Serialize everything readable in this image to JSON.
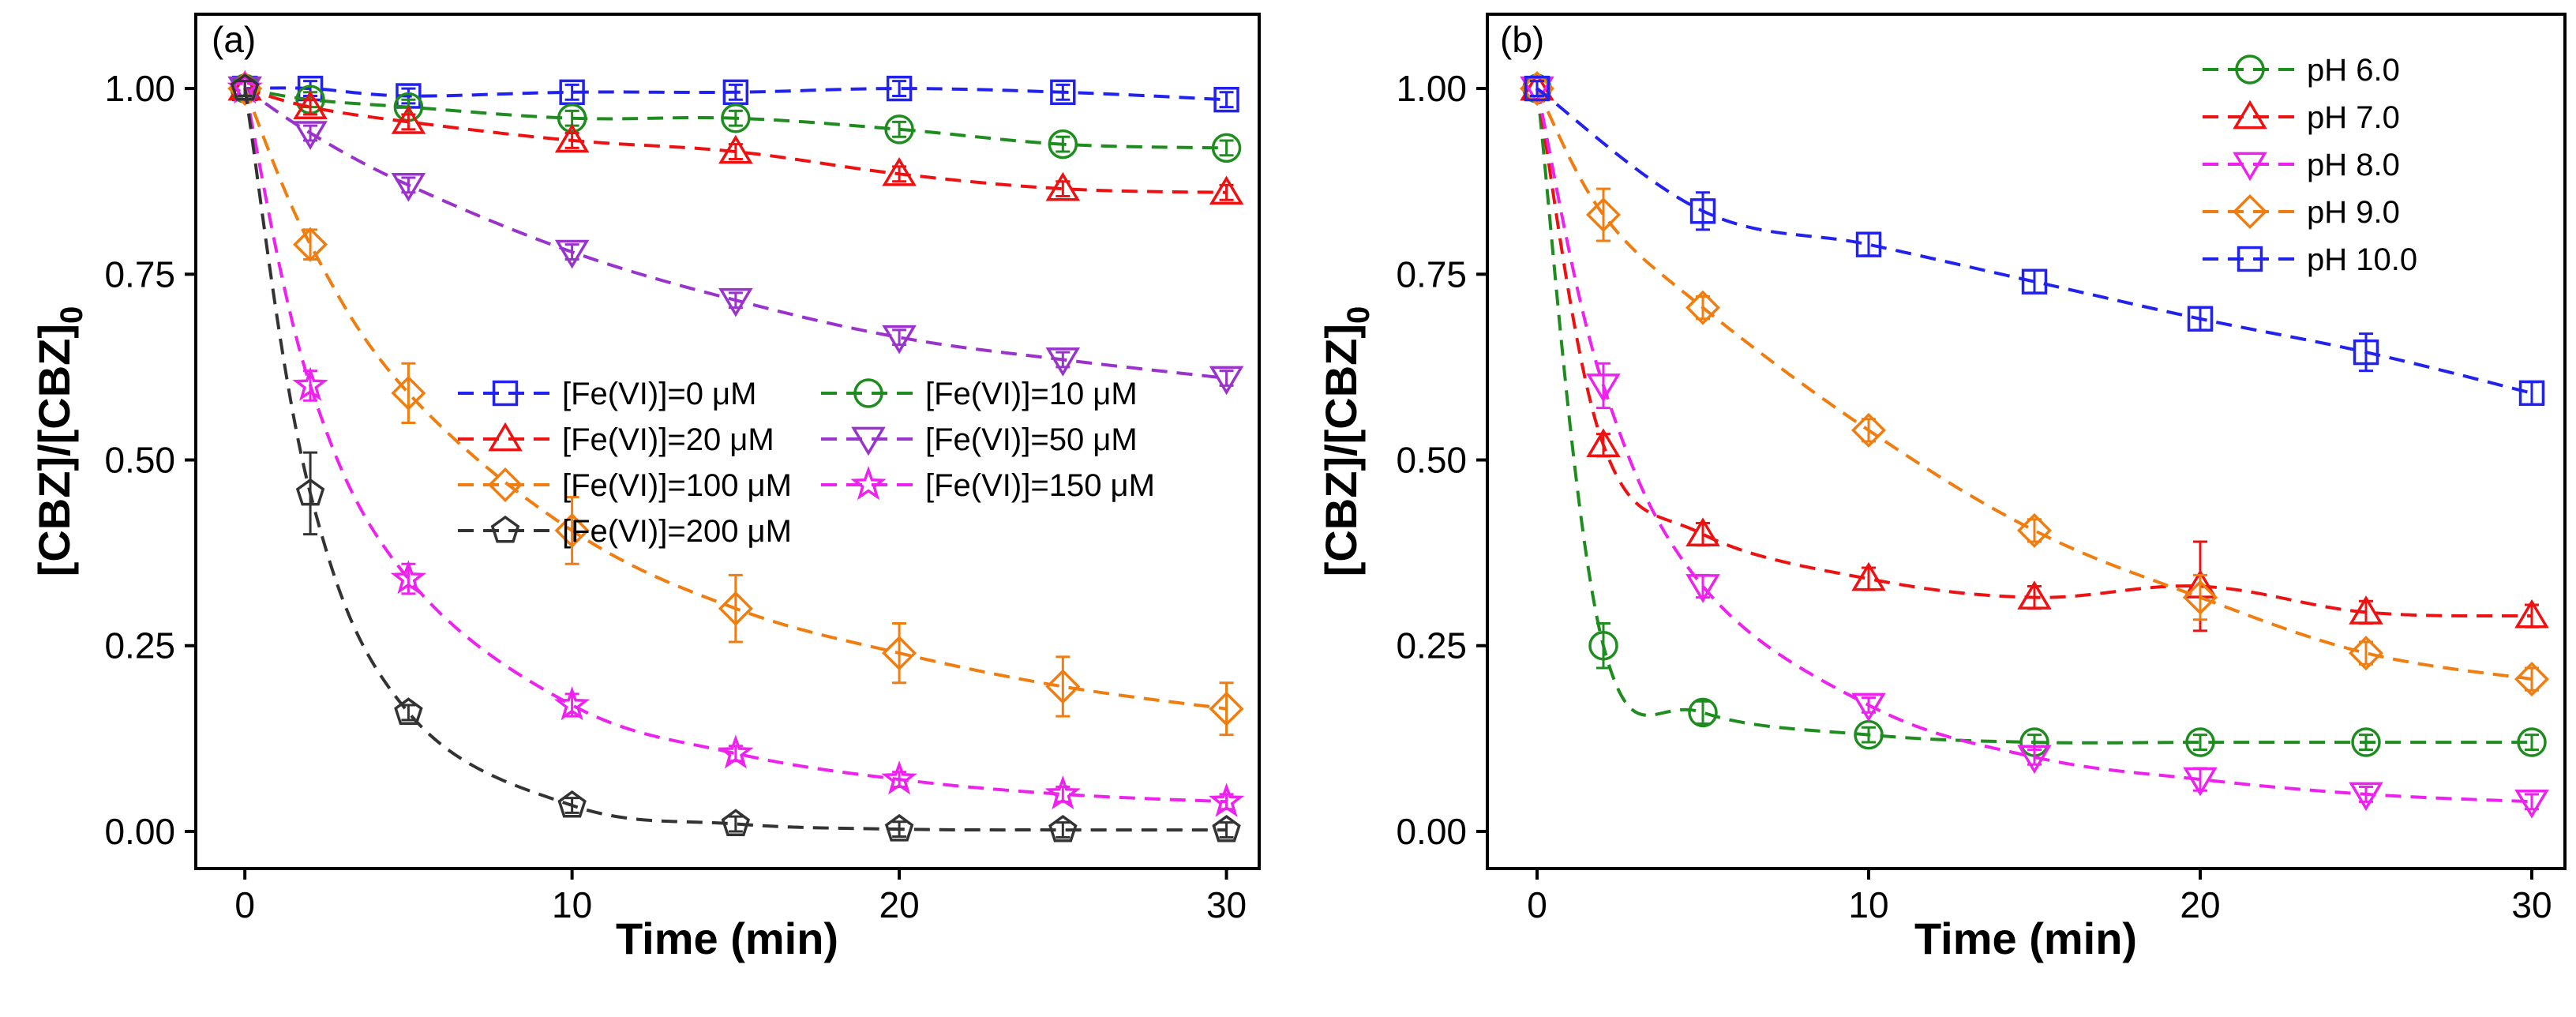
{
  "chart_data": [
    {
      "type": "line",
      "panel_label": "(a)",
      "xlabel": "Time (min)",
      "ylabel": "[CBZ]/[CBZ]",
      "ylabel_sub": "0",
      "xlim": [
        -1.5,
        31
      ],
      "ylim": [
        -0.05,
        1.1
      ],
      "xticks": [
        0,
        10,
        20,
        30
      ],
      "xtick_labels": [
        "0",
        "10",
        "20",
        "30"
      ],
      "yticks": [
        0.0,
        0.25,
        0.5,
        0.75,
        1.0
      ],
      "ytick_labels": [
        "0.00",
        "0.25",
        "0.50",
        "0.75",
        "1.00"
      ],
      "legend_position": "center-right, two columns",
      "series": [
        {
          "name": "[Fe(VI)]=0 μM",
          "marker": "square",
          "color": "#2222EE",
          "x": [
            0,
            2,
            5,
            10,
            15,
            20,
            25,
            30
          ],
          "y": [
            1.0,
            1.0,
            0.99,
            0.995,
            0.995,
            1.0,
            0.995,
            0.985
          ],
          "err": [
            0.01,
            0.01,
            0.01,
            0.01,
            0.01,
            0.01,
            0.01,
            0.01
          ]
        },
        {
          "name": "[Fe(VI)]=10 μM",
          "marker": "circle",
          "color": "#1E8C1E",
          "x": [
            0,
            2,
            5,
            10,
            15,
            20,
            25,
            30
          ],
          "y": [
            1.0,
            0.985,
            0.975,
            0.96,
            0.96,
            0.945,
            0.925,
            0.92
          ],
          "err": [
            0.01,
            0.01,
            0.01,
            0.01,
            0.01,
            0.01,
            0.01,
            0.01
          ]
        },
        {
          "name": "[Fe(VI)]=20 μM",
          "marker": "triangle-up",
          "color": "#EE1111",
          "x": [
            0,
            2,
            5,
            10,
            15,
            20,
            25,
            30
          ],
          "y": [
            1.0,
            0.975,
            0.955,
            0.93,
            0.915,
            0.885,
            0.865,
            0.86
          ],
          "err": [
            0.01,
            0.01,
            0.01,
            0.01,
            0.01,
            0.01,
            0.01,
            0.01
          ]
        },
        {
          "name": "[Fe(VI)]=50 μM",
          "marker": "triangle-down",
          "color": "#9933CC",
          "x": [
            0,
            2,
            5,
            10,
            15,
            20,
            25,
            30
          ],
          "y": [
            1.0,
            0.94,
            0.87,
            0.78,
            0.715,
            0.665,
            0.635,
            0.61
          ],
          "err": [
            0.01,
            0.01,
            0.01,
            0.01,
            0.01,
            0.01,
            0.01,
            0.01
          ]
        },
        {
          "name": "[Fe(VI)]=100 μM",
          "marker": "diamond",
          "color": "#F07D10",
          "x": [
            0,
            2,
            5,
            10,
            15,
            20,
            25,
            30
          ],
          "y": [
            1.0,
            0.79,
            0.59,
            0.405,
            0.3,
            0.24,
            0.195,
            0.165
          ],
          "err": [
            0.01,
            0.02,
            0.04,
            0.045,
            0.045,
            0.04,
            0.04,
            0.035
          ]
        },
        {
          "name": "[Fe(VI)]=150 μM",
          "marker": "star",
          "color": "#EE22EE",
          "x": [
            0,
            2,
            5,
            10,
            15,
            20,
            25,
            30
          ],
          "y": [
            1.0,
            0.6,
            0.34,
            0.17,
            0.105,
            0.07,
            0.05,
            0.04
          ],
          "err": [
            0.01,
            0.02,
            0.02,
            0.015,
            0.01,
            0.01,
            0.01,
            0.01
          ]
        },
        {
          "name": "[Fe(VI)]=200 μM",
          "marker": "pentagon",
          "color": "#333333",
          "x": [
            0,
            2,
            5,
            10,
            15,
            20,
            25,
            30
          ],
          "y": [
            1.0,
            0.455,
            0.16,
            0.035,
            0.01,
            0.003,
            0.002,
            0.002
          ],
          "err": [
            0.01,
            0.055,
            0.01,
            0.01,
            0.01,
            0.01,
            0.01,
            0.01
          ]
        }
      ]
    },
    {
      "type": "line",
      "panel_label": "(b)",
      "xlabel": "Time (min)",
      "ylabel": "[CBZ]/[CBZ]",
      "ylabel_sub": "0",
      "xlim": [
        -1.5,
        31
      ],
      "ylim": [
        -0.05,
        1.1
      ],
      "xticks": [
        0,
        10,
        20,
        30
      ],
      "xtick_labels": [
        "0",
        "10",
        "20",
        "30"
      ],
      "yticks": [
        0.0,
        0.25,
        0.5,
        0.75,
        1.0
      ],
      "ytick_labels": [
        "0.00",
        "0.25",
        "0.50",
        "0.75",
        "1.00"
      ],
      "legend_position": "top-right, one column",
      "series": [
        {
          "name": "pH 6.0",
          "marker": "circle",
          "color": "#1E8C1E",
          "x": [
            0,
            2,
            5,
            10,
            15,
            20,
            25,
            30
          ],
          "y": [
            1.0,
            0.25,
            0.16,
            0.13,
            0.12,
            0.12,
            0.12,
            0.12
          ],
          "err": [
            0.01,
            0.03,
            0.015,
            0.01,
            0.01,
            0.01,
            0.01,
            0.01
          ]
        },
        {
          "name": "pH 7.0",
          "marker": "triangle-up",
          "color": "#EE1111",
          "x": [
            0,
            2,
            5,
            10,
            15,
            20,
            25,
            30
          ],
          "y": [
            1.0,
            0.52,
            0.4,
            0.34,
            0.315,
            0.33,
            0.295,
            0.29
          ],
          "err": [
            0.01,
            0.015,
            0.015,
            0.015,
            0.015,
            0.06,
            0.015,
            0.015
          ]
        },
        {
          "name": "pH 8.0",
          "marker": "triangle-down",
          "color": "#EE22EE",
          "x": [
            0,
            2,
            5,
            10,
            15,
            20,
            25,
            30
          ],
          "y": [
            1.0,
            0.6,
            0.33,
            0.17,
            0.1,
            0.07,
            0.05,
            0.04
          ],
          "err": [
            0.01,
            0.03,
            0.015,
            0.01,
            0.01,
            0.015,
            0.01,
            0.01
          ]
        },
        {
          "name": "pH 9.0",
          "marker": "diamond",
          "color": "#F07D10",
          "x": [
            0,
            2,
            5,
            10,
            15,
            20,
            25,
            30
          ],
          "y": [
            1.0,
            0.83,
            0.705,
            0.54,
            0.405,
            0.315,
            0.24,
            0.205
          ],
          "err": [
            0.01,
            0.035,
            0.015,
            0.015,
            0.015,
            0.03,
            0.015,
            0.015
          ]
        },
        {
          "name": "pH 10.0",
          "marker": "square",
          "color": "#2222EE",
          "x": [
            0,
            5,
            10,
            15,
            20,
            25,
            30
          ],
          "y": [
            1.0,
            0.835,
            0.79,
            0.74,
            0.69,
            0.645,
            0.59
          ],
          "err": [
            0.01,
            0.025,
            0.015,
            0.015,
            0.015,
            0.025,
            0.015
          ]
        }
      ]
    }
  ]
}
